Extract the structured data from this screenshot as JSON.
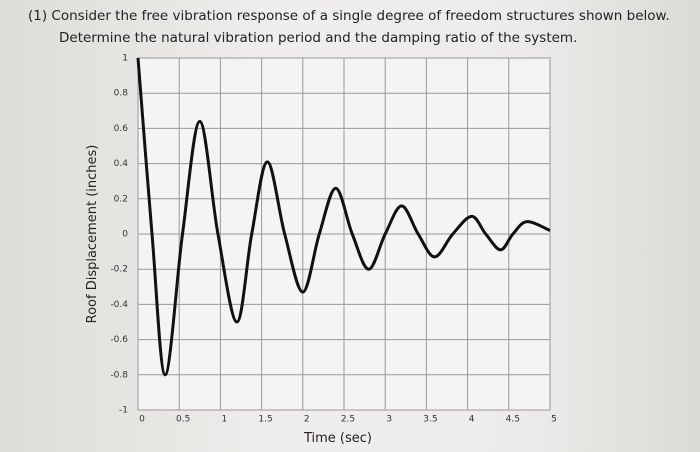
{
  "header": {
    "line1": "(1) Consider the free vibration response of a single degree of freedom structures shown below.",
    "line2": "Determine the natural vibration period and the damping ratio of the system."
  },
  "chart_data": {
    "type": "line",
    "x_label": "Time (sec)",
    "y_label": "Roof Displacement (inches)",
    "x": [
      0,
      0.17,
      0.33,
      0.54,
      0.75,
      0.97,
      1.2,
      1.38,
      1.57,
      1.78,
      2.0,
      2.2,
      2.4,
      2.6,
      2.8,
      3.0,
      3.2,
      3.4,
      3.6,
      3.82,
      4.05,
      4.22,
      4.4,
      4.55,
      4.72,
      5.0
    ],
    "series": [
      {
        "color": "#111111",
        "values": [
          1,
          0,
          -0.8,
          0,
          0.64,
          0,
          -0.5,
          0,
          0.41,
          0,
          -0.33,
          0,
          0.26,
          0,
          -0.2,
          0,
          0.16,
          0,
          -0.13,
          0,
          0.1,
          0,
          -0.09,
          0,
          0.07,
          0.02
        ]
      }
    ],
    "xlim": [
      0,
      5
    ],
    "ylim": [
      -1,
      1
    ],
    "xticks": [
      0,
      0.5,
      1,
      1.5,
      2,
      2.5,
      3,
      3.5,
      4,
      4.5,
      5
    ],
    "yticks": [
      -1,
      -0.8,
      -0.6,
      -0.4,
      -0.2,
      0,
      0.2,
      0.4,
      0.6,
      0.8,
      1
    ],
    "grid": true
  }
}
